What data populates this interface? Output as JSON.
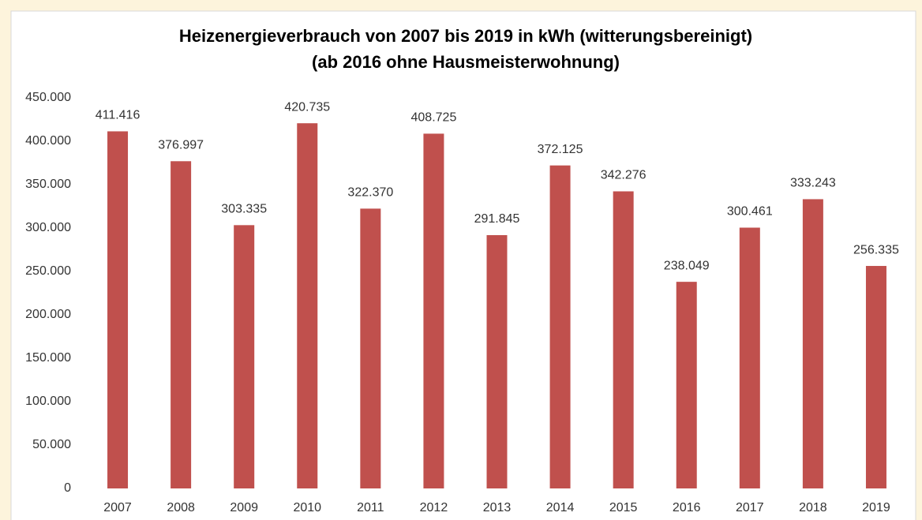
{
  "chart_data": {
    "type": "bar",
    "title": "Heizenergieverbrauch von 2007 bis 2019 in kWh (witterungsbereinigt)",
    "subtitle": "(ab 2016 ohne Hausmeisterwohnung)",
    "categories": [
      "2007",
      "2008",
      "2009",
      "2010",
      "2011",
      "2012",
      "2013",
      "2014",
      "2015",
      "2016",
      "2017",
      "2018",
      "2019"
    ],
    "values": [
      411416,
      376997,
      303335,
      420735,
      322370,
      408725,
      291845,
      372125,
      342276,
      238049,
      300461,
      333243,
      256335
    ],
    "value_labels": [
      "411.416",
      "376.997",
      "303.335",
      "420.735",
      "322.370",
      "408.725",
      "291.845",
      "372.125",
      "342.276",
      "238.049",
      "300.461",
      "333.243",
      "256.335"
    ],
    "color": "#c0504d",
    "ylim": [
      0,
      450000
    ],
    "yticks": [
      0,
      {
        "value": 50000,
        "label": "50.000"
      },
      {
        "value": 100000,
        "label": "100.000"
      },
      {
        "value": 150000,
        "label": "150.000"
      },
      {
        "value": 200000,
        "label": "200.000"
      },
      {
        "value": 250000,
        "label": "250.000"
      },
      {
        "value": 300000,
        "label": "300.000"
      },
      {
        "value": 350000,
        "label": "350.000"
      },
      {
        "value": 400000,
        "label": "400.000"
      },
      {
        "value": 450000,
        "label": "450.000"
      }
    ],
    "grid": false
  }
}
